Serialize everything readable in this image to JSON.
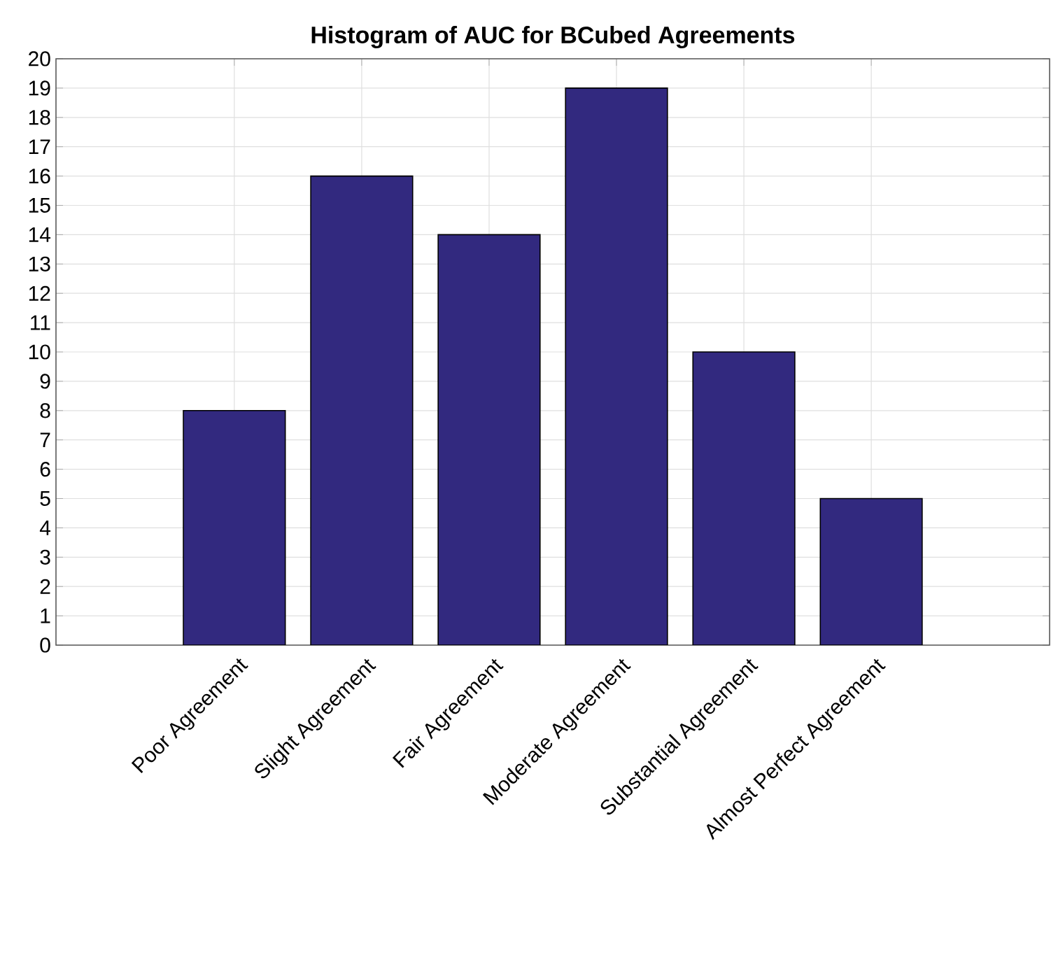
{
  "chart_data": {
    "type": "bar",
    "title": "Histogram of AUC for BCubed Agreements",
    "categories": [
      "Poor Agreement",
      "Slight Agreement",
      "Fair Agreement",
      "Moderate Agreement",
      "Substantial Agreement",
      "Almost Perfect Agreement"
    ],
    "values": [
      8,
      16,
      14,
      19,
      10,
      5
    ],
    "color": "#32297f",
    "ylim": [
      0,
      20
    ],
    "yticks": [
      0,
      1,
      2,
      3,
      4,
      5,
      6,
      7,
      8,
      9,
      10,
      11,
      12,
      13,
      14,
      15,
      16,
      17,
      18,
      19,
      20
    ],
    "grid": true
  }
}
